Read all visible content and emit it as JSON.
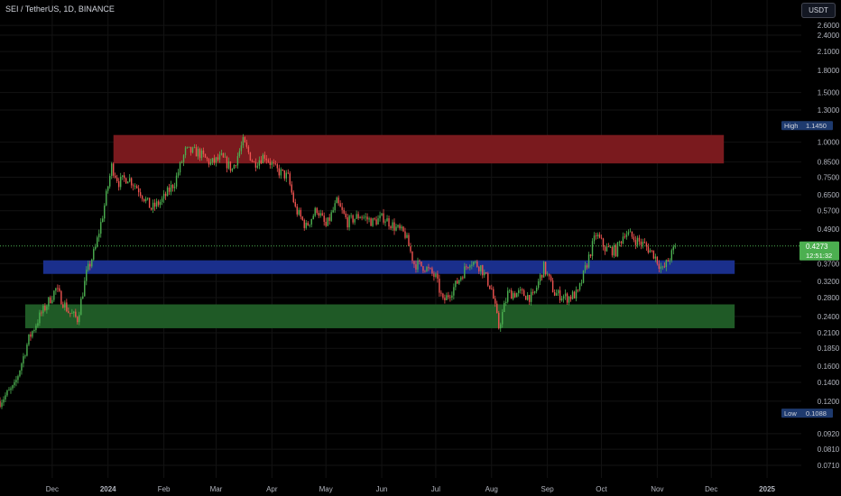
{
  "header": {
    "symbol": "SEI / TetherUS, 1D, BINANCE",
    "currency_button": "USDT"
  },
  "colors": {
    "up": "#4caf50",
    "down": "#ef5350",
    "resistance_zone": "#7a1a1e",
    "support_zone_blue": "#1a2f8c",
    "support_zone_green": "#1f5a26",
    "price_tag": "#4caf50",
    "marker_tag": "#1e3a6e"
  },
  "chart_data": {
    "type": "candlestick",
    "title": "SEI / TetherUS, 1D, BINANCE",
    "y_scale": "log",
    "ylim": [
      0.064,
      3.2
    ],
    "y_ticks": [
      "2.6000",
      "2.4000",
      "2.1000",
      "1.8000",
      "1.5000",
      "1.3000",
      "1.0000",
      "0.8500",
      "0.7500",
      "0.6500",
      "0.5700",
      "0.4900",
      "0.3700",
      "0.3200",
      "0.2800",
      "0.2400",
      "0.2100",
      "0.1850",
      "0.1600",
      "0.1400",
      "0.1200",
      "0.0920",
      "0.0810",
      "0.0710"
    ],
    "x_ticks": [
      {
        "label": "Dec",
        "date": "2023-12-01"
      },
      {
        "label": "2024",
        "date": "2024-01-01"
      },
      {
        "label": "Feb",
        "date": "2024-02-01"
      },
      {
        "label": "Mar",
        "date": "2024-03-01"
      },
      {
        "label": "Apr",
        "date": "2024-04-01"
      },
      {
        "label": "May",
        "date": "2024-05-01"
      },
      {
        "label": "Jun",
        "date": "2024-06-01"
      },
      {
        "label": "Jul",
        "date": "2024-07-01"
      },
      {
        "label": "Aug",
        "date": "2024-08-01"
      },
      {
        "label": "Sep",
        "date": "2024-09-01"
      },
      {
        "label": "Oct",
        "date": "2024-10-01"
      },
      {
        "label": "Nov",
        "date": "2024-11-01"
      },
      {
        "label": "Dec",
        "date": "2024-12-01"
      },
      {
        "label": "2025",
        "date": "2025-01-01"
      }
    ],
    "x_range": [
      "2023-11-02",
      "2025-01-20"
    ],
    "high_marker": {
      "label": "High",
      "value": "1.1450"
    },
    "low_marker": {
      "label": "Low",
      "value": "0.1088"
    },
    "last_price": {
      "value": "0.4273",
      "countdown": "12:51:32"
    },
    "zones": [
      {
        "name": "resistance",
        "from_date": "2024-01-04",
        "to_date": "2024-12-08",
        "low": 0.84,
        "high": 1.06
      },
      {
        "name": "support-blue",
        "from_date": "2023-11-26",
        "to_date": "2024-12-14",
        "low": 0.34,
        "high": 0.38
      },
      {
        "name": "support-green",
        "from_date": "2023-11-16",
        "to_date": "2024-12-14",
        "low": 0.218,
        "high": 0.265
      }
    ],
    "price_path": [
      [
        "2023-11-02",
        0.12
      ],
      [
        "2023-11-10",
        0.135
      ],
      [
        "2023-11-18",
        0.2
      ],
      [
        "2023-11-24",
        0.24
      ],
      [
        "2023-12-03",
        0.3
      ],
      [
        "2023-12-10",
        0.25
      ],
      [
        "2023-12-15",
        0.235
      ],
      [
        "2023-12-20",
        0.34
      ],
      [
        "2023-12-25",
        0.42
      ],
      [
        "2023-12-29",
        0.55
      ],
      [
        "2024-01-03",
        0.82
      ],
      [
        "2024-01-07",
        0.72
      ],
      [
        "2024-01-12",
        0.75
      ],
      [
        "2024-01-18",
        0.68
      ],
      [
        "2024-01-25",
        0.58
      ],
      [
        "2024-01-31",
        0.62
      ],
      [
        "2024-02-07",
        0.72
      ],
      [
        "2024-02-13",
        0.93
      ],
      [
        "2024-02-20",
        0.92
      ],
      [
        "2024-02-27",
        0.84
      ],
      [
        "2024-03-04",
        0.88
      ],
      [
        "2024-03-10",
        0.8
      ],
      [
        "2024-03-16",
        1.0
      ],
      [
        "2024-03-22",
        0.84
      ],
      [
        "2024-03-28",
        0.9
      ],
      [
        "2024-04-03",
        0.8
      ],
      [
        "2024-04-10",
        0.75
      ],
      [
        "2024-04-14",
        0.58
      ],
      [
        "2024-04-20",
        0.5
      ],
      [
        "2024-04-26",
        0.58
      ],
      [
        "2024-05-01",
        0.5
      ],
      [
        "2024-05-07",
        0.61
      ],
      [
        "2024-05-13",
        0.52
      ],
      [
        "2024-05-20",
        0.55
      ],
      [
        "2024-05-27",
        0.52
      ],
      [
        "2024-06-02",
        0.54
      ],
      [
        "2024-06-08",
        0.5
      ],
      [
        "2024-06-14",
        0.47
      ],
      [
        "2024-06-19",
        0.37
      ],
      [
        "2024-06-25",
        0.36
      ],
      [
        "2024-07-01",
        0.33
      ],
      [
        "2024-07-05",
        0.27
      ],
      [
        "2024-07-12",
        0.31
      ],
      [
        "2024-07-20",
        0.38
      ],
      [
        "2024-07-26",
        0.36
      ],
      [
        "2024-08-01",
        0.3
      ],
      [
        "2024-08-05",
        0.22
      ],
      [
        "2024-08-10",
        0.29
      ],
      [
        "2024-08-17",
        0.29
      ],
      [
        "2024-08-24",
        0.28
      ],
      [
        "2024-08-30",
        0.36
      ],
      [
        "2024-09-05",
        0.29
      ],
      [
        "2024-09-12",
        0.28
      ],
      [
        "2024-09-18",
        0.29
      ],
      [
        "2024-09-24",
        0.39
      ],
      [
        "2024-09-28",
        0.47
      ],
      [
        "2024-10-03",
        0.42
      ],
      [
        "2024-10-09",
        0.41
      ],
      [
        "2024-10-14",
        0.48
      ],
      [
        "2024-10-20",
        0.45
      ],
      [
        "2024-10-25",
        0.43
      ],
      [
        "2024-10-30",
        0.4
      ],
      [
        "2024-11-04",
        0.35
      ],
      [
        "2024-11-09",
        0.4
      ],
      [
        "2024-11-11",
        0.4273
      ]
    ]
  }
}
